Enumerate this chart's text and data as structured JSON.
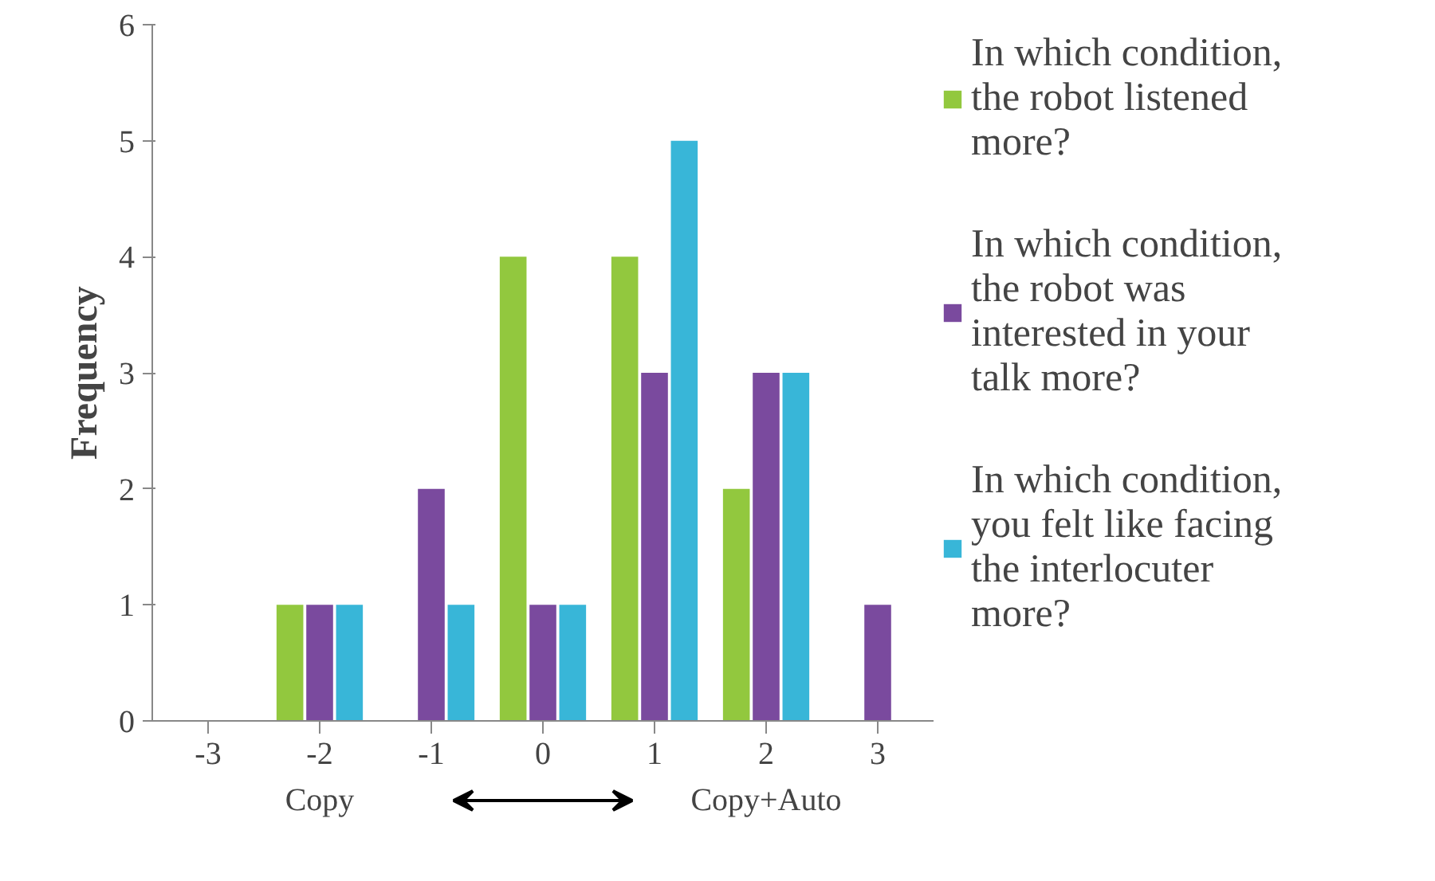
{
  "chart_data": {
    "type": "bar",
    "ylabel": "Frequency",
    "categories": [
      "-3",
      "-2",
      "-1",
      "0",
      "1",
      "2",
      "3"
    ],
    "series": [
      {
        "name": "In which condition, the robot listened more?",
        "color": "#92c83e",
        "values": [
          0,
          1,
          0,
          4,
          4,
          2,
          0
        ]
      },
      {
        "name": "In which condition, the robot was interested in your talk more?",
        "color": "#7a4a9e",
        "values": [
          0,
          1,
          2,
          1,
          3,
          3,
          1
        ]
      },
      {
        "name": "In which condition, you felt like facing the interlocuter more?",
        "color": "#38b6d8",
        "values": [
          0,
          1,
          1,
          1,
          5,
          3,
          0
        ]
      }
    ],
    "ylim": [
      0,
      6
    ],
    "yticks": [
      0,
      1,
      2,
      3,
      4,
      5,
      6
    ],
    "grid": false,
    "legend": "right",
    "annotations": [
      "Copy",
      "Copy+Auto"
    ]
  }
}
